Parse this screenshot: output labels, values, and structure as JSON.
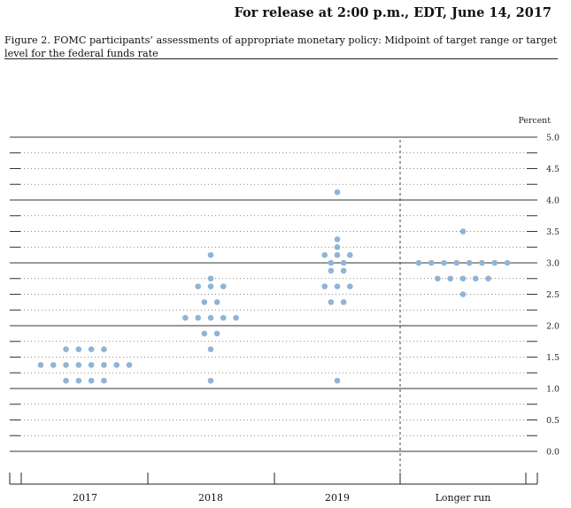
{
  "header": {
    "release_line": "For release at 2:00 p.m., EDT, June 14, 2017",
    "figure_caption": "Figure 2. FOMC participants’ assessments of appropriate monetary policy: Midpoint of target range or target level for the federal funds rate"
  },
  "chart_data": {
    "type": "scatter",
    "subtype": "dot-plot",
    "title": "FOMC participants’ assessments of appropriate monetary policy: Midpoint of target range or target level for the federal funds rate",
    "ylabel": "Percent",
    "ylim": [
      0.0,
      5.0
    ],
    "ytick_labels": [
      "5.0",
      "4.5",
      "4.0",
      "3.5",
      "3.0",
      "2.5",
      "2.0",
      "1.5",
      "1.0",
      "0.5",
      "0.0"
    ],
    "categories": [
      "2017",
      "2018",
      "2019",
      "Longer run"
    ],
    "dot_color": "#8fb4d6",
    "series": [
      {
        "name": "2017",
        "values": [
          {
            "y": 1.625,
            "count": 4
          },
          {
            "y": 1.375,
            "count": 8
          },
          {
            "y": 1.125,
            "count": 4
          }
        ]
      },
      {
        "name": "2018",
        "values": [
          {
            "y": 3.125,
            "count": 1
          },
          {
            "y": 2.75,
            "count": 1
          },
          {
            "y": 2.625,
            "count": 3
          },
          {
            "y": 2.375,
            "count": 2
          },
          {
            "y": 2.125,
            "count": 5
          },
          {
            "y": 1.875,
            "count": 2
          },
          {
            "y": 1.625,
            "count": 1
          },
          {
            "y": 1.125,
            "count": 1
          }
        ]
      },
      {
        "name": "2019",
        "values": [
          {
            "y": 4.125,
            "count": 1
          },
          {
            "y": 3.375,
            "count": 1
          },
          {
            "y": 3.25,
            "count": 1
          },
          {
            "y": 3.125,
            "count": 3
          },
          {
            "y": 3.0,
            "count": 2
          },
          {
            "y": 2.875,
            "count": 2
          },
          {
            "y": 2.625,
            "count": 3
          },
          {
            "y": 2.375,
            "count": 2
          },
          {
            "y": 1.125,
            "count": 1
          }
        ]
      },
      {
        "name": "Longer run",
        "values": [
          {
            "y": 3.5,
            "count": 1
          },
          {
            "y": 3.0,
            "count": 8
          },
          {
            "y": 2.75,
            "count": 5
          },
          {
            "y": 2.5,
            "count": 1
          }
        ]
      }
    ]
  }
}
